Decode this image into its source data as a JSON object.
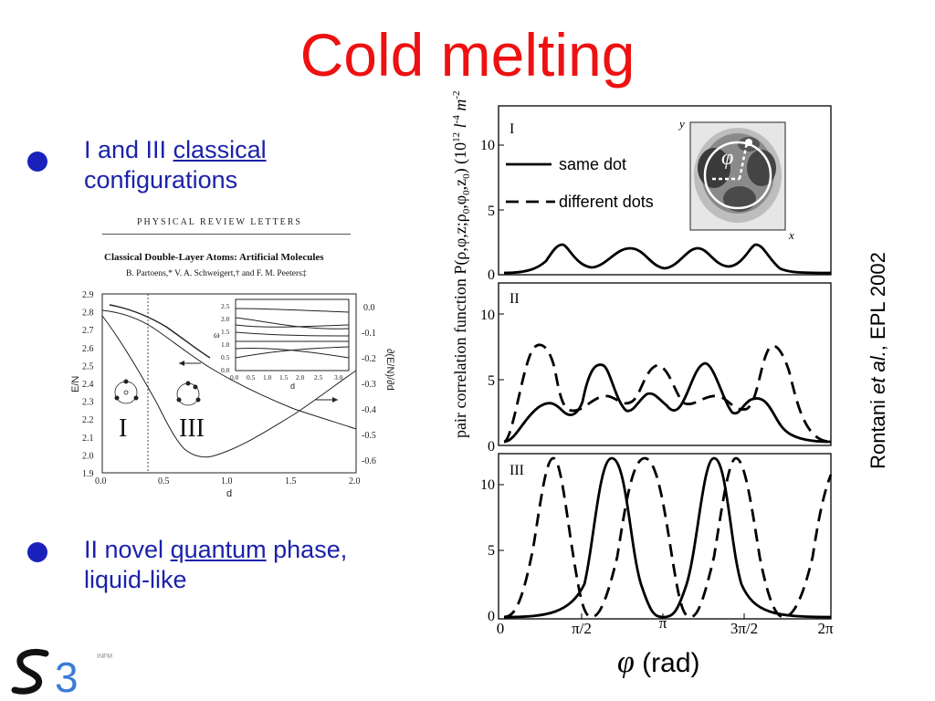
{
  "slide": {
    "title": "Cold melting",
    "bullets": [
      {
        "line1_prefix": "I and III ",
        "line1_link": "classical",
        "line2": "configurations"
      },
      {
        "line1_prefix": "II novel ",
        "line1_link": "quantum",
        "line1_suffix": " phase,",
        "line2": "liquid-like"
      }
    ],
    "credit": {
      "author": "Rontani ",
      "etal": "et al.",
      "rest": ", EPL 2002"
    },
    "logo": {
      "text": "S3",
      "small": "INFM"
    }
  },
  "paper": {
    "journal": "PHYSICAL REVIEW LETTERS",
    "title": "Classical Double-Layer Atoms: Artificial Molecules",
    "authors": "B. Partoens,* V. A. Schweigert,† and F. M. Peeters‡",
    "regions": [
      "I",
      "III"
    ],
    "ylabel_left": "E/N",
    "ylabel_right": "∂(E/N)/∂d",
    "xlabel": "d",
    "inset_ylabel": "ω",
    "inset_xlabel": "d",
    "yticks_left": [
      "2.9",
      "2.8",
      "2.7",
      "2.6",
      "2.5",
      "2.4",
      "2.3",
      "2.2",
      "2.1",
      "2.0",
      "1.9"
    ],
    "yticks_right": [
      "0.0",
      "-0.1",
      "-0.2",
      "-0.3",
      "-0.4",
      "-0.5",
      "-0.6"
    ],
    "xticks": [
      "0.0",
      "0.5",
      "1.0",
      "1.5",
      "2.0"
    ],
    "inset_yticks": [
      "2.5",
      "2.0",
      "1.5",
      "1.0",
      "0.5",
      "0.0"
    ],
    "inset_xticks": [
      "0.0",
      "0.5",
      "1.0",
      "1.5",
      "2.0",
      "2.5",
      "3.0"
    ],
    "colors": {
      "line": "#222222"
    }
  },
  "correlation": {
    "ylabel": "pair correlation function P(ρ,φ,z;ρ0,φ0,z0)  (10^12 l^-4 m^-2)",
    "ylabel_main": "pair correlation function P(ρ,φ,z;ρ",
    "ylabel_sub0": "0",
    "ylabel_mid": ",φ",
    "ylabel_sub1": "0",
    "ylabel_mid2": ",z",
    "ylabel_sub2": "0",
    "ylabel_close": ")  (10",
    "ylabel_sup1": "12",
    "ylabel_l": " l",
    "ylabel_sup2": "-4",
    "ylabel_m": " m",
    "ylabel_sup3": "-2",
    "ylabel_end": ")",
    "xlabel_symbol": "φ",
    "xlabel_unit": " (rad)",
    "panels": [
      "I",
      "II",
      "III"
    ],
    "legend": {
      "solid": "same dot",
      "dashed": "different dots"
    },
    "panel_I_yticks": [
      "10",
      "5",
      "0"
    ],
    "panel_II_yticks": [
      "10",
      "5",
      "0"
    ],
    "panel_III_yticks": [
      "10",
      "5",
      "0"
    ],
    "xticks": [
      "0",
      "π/2",
      "π",
      "3π/2",
      "2π"
    ],
    "inset": {
      "x_label": "x",
      "y_label": "y",
      "phi": "φ"
    },
    "colors": {
      "line": "#000000"
    }
  }
}
